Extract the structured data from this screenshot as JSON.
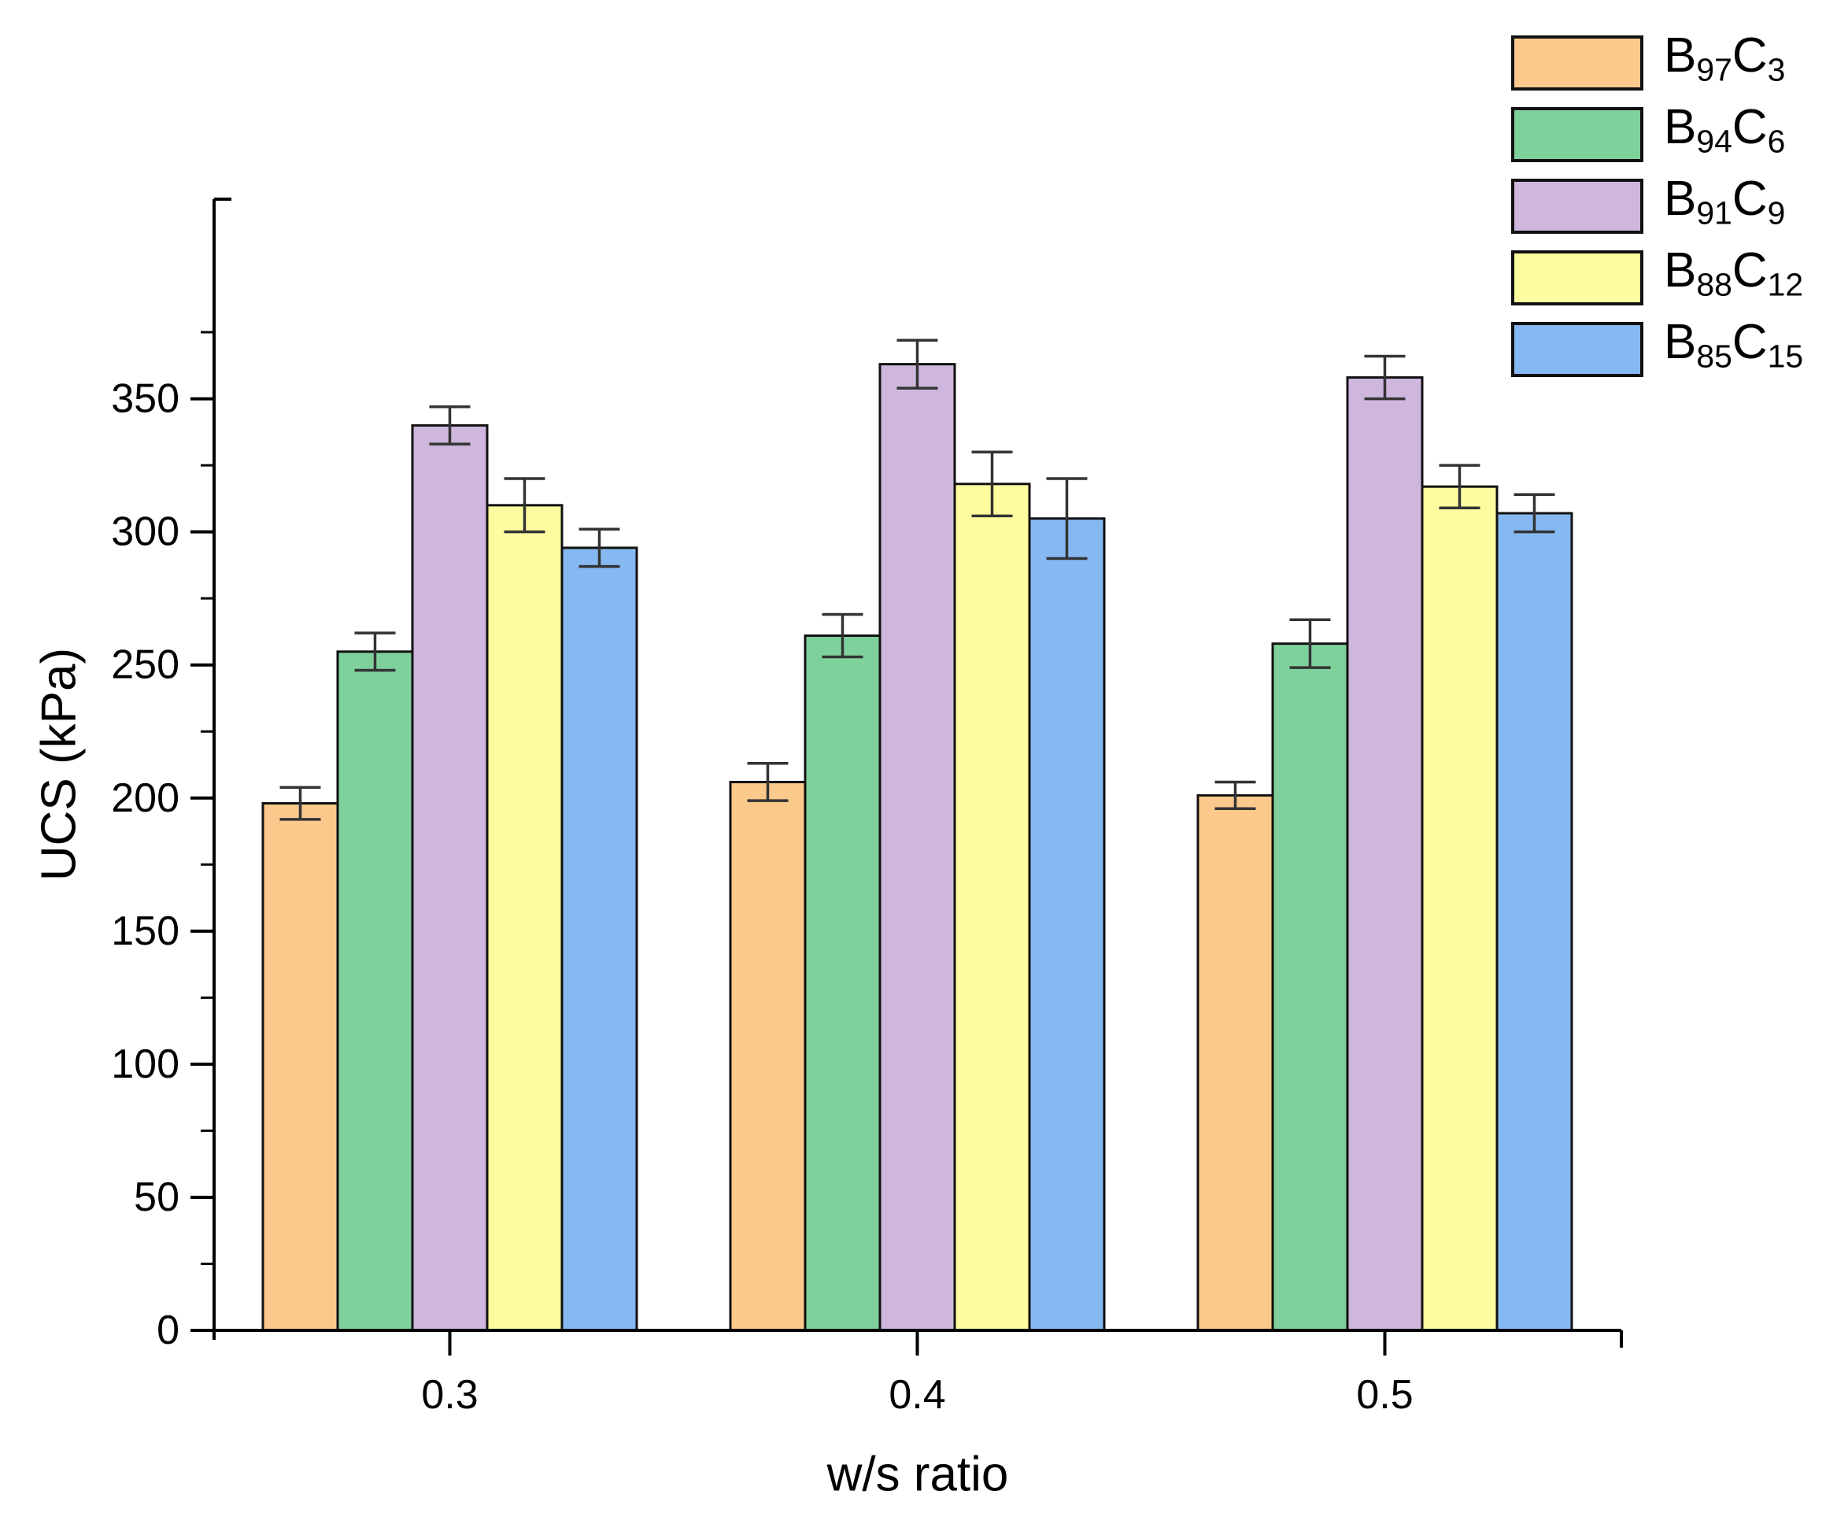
{
  "chart_data": {
    "type": "bar",
    "title": "",
    "xlabel": "w/s ratio",
    "ylabel": "UCS (kPa)",
    "categories": [
      "0.3",
      "0.4",
      "0.5"
    ],
    "series": [
      {
        "name": "B97C3",
        "label_parts": [
          [
            "B",
            "97"
          ],
          [
            "C",
            "3"
          ]
        ],
        "color": "#FAC98B",
        "values": [
          198,
          206,
          201
        ],
        "errors": [
          6,
          7,
          5
        ]
      },
      {
        "name": "B94C6",
        "label_parts": [
          [
            "B",
            "94"
          ],
          [
            "C",
            "6"
          ]
        ],
        "color": "#7FD19B",
        "values": [
          255,
          261,
          258
        ],
        "errors": [
          7,
          8,
          9
        ]
      },
      {
        "name": "B91C9",
        "label_parts": [
          [
            "B",
            "91"
          ],
          [
            "C",
            "9"
          ]
        ],
        "color": "#CEB6DD",
        "values": [
          340,
          363,
          358
        ],
        "errors": [
          7,
          9,
          8
        ]
      },
      {
        "name": "B88C12",
        "label_parts": [
          [
            "B",
            "88"
          ],
          [
            "C",
            "12"
          ]
        ],
        "color": "#FDFD9F",
        "values": [
          310,
          318,
          317
        ],
        "errors": [
          10,
          12,
          8
        ]
      },
      {
        "name": "B85C15",
        "label_parts": [
          [
            "B",
            "85"
          ],
          [
            "C",
            "15"
          ]
        ],
        "color": "#86B9F2",
        "values": [
          294,
          305,
          307
        ],
        "errors": [
          7,
          15,
          7
        ]
      }
    ],
    "ylim": [
      0,
      425
    ],
    "y_major_step": 50,
    "y_minor_step": 25,
    "grid": false,
    "legend_position": "top-right",
    "bar_edge_color": "#111111",
    "error_bar_color": "#333333",
    "axis_color": "#000000",
    "background_color": "#ffffff"
  }
}
